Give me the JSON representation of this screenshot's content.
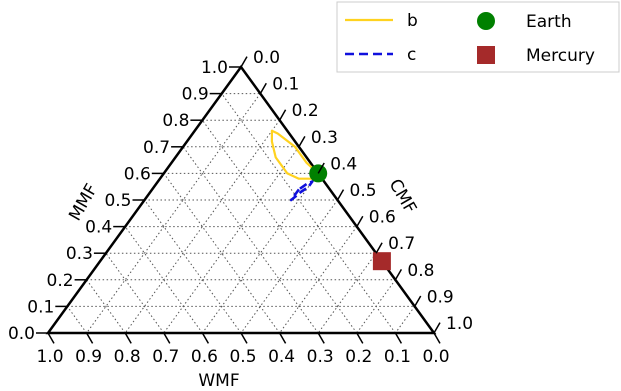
{
  "chart_data": {
    "type": "scatter",
    "subtype": "ternary",
    "title": "",
    "axes": {
      "bottom": {
        "label": "WMF",
        "ticks": [
          "1.0",
          "0.9",
          "0.8",
          "0.7",
          "0.6",
          "0.5",
          "0.4",
          "0.3",
          "0.2",
          "0.1",
          "0.0"
        ]
      },
      "left": {
        "label": "MMF",
        "ticks": [
          "0.0",
          "0.1",
          "0.2",
          "0.3",
          "0.4",
          "0.5",
          "0.6",
          "0.7",
          "0.8",
          "0.9",
          "1.0"
        ]
      },
      "right": {
        "label": "CMF",
        "ticks": [
          "0.0",
          "0.1",
          "0.2",
          "0.3",
          "0.4",
          "0.5",
          "0.6",
          "0.7",
          "0.8",
          "0.9",
          "1.0"
        ]
      }
    },
    "grid": true,
    "legend_position": "top-right",
    "series": [
      {
        "name": "b",
        "kind": "contour",
        "color": "#FFD21F",
        "line_style": "solid",
        "points": [
          {
            "CMF": 0.4,
            "MMF": 0.6,
            "WMF": 0.0
          },
          {
            "CMF": 0.35,
            "MMF": 0.64,
            "WMF": 0.01
          },
          {
            "CMF": 0.29,
            "MMF": 0.7,
            "WMF": 0.01
          },
          {
            "CMF": 0.22,
            "MMF": 0.75,
            "WMF": 0.03
          },
          {
            "CMF": 0.2,
            "MMF": 0.76,
            "WMF": 0.04
          },
          {
            "CMF": 0.22,
            "MMF": 0.72,
            "WMF": 0.06
          },
          {
            "CMF": 0.26,
            "MMF": 0.66,
            "WMF": 0.08
          },
          {
            "CMF": 0.32,
            "MMF": 0.6,
            "WMF": 0.08
          },
          {
            "CMF": 0.36,
            "MMF": 0.58,
            "WMF": 0.06
          },
          {
            "CMF": 0.4,
            "MMF": 0.58,
            "WMF": 0.02
          }
        ]
      },
      {
        "name": "c",
        "kind": "contour",
        "color": "#1010DD",
        "line_style": "dashed",
        "points": [
          {
            "CMF": 0.38,
            "MMF": 0.54,
            "WMF": 0.08
          },
          {
            "CMF": 0.38,
            "MMF": 0.51,
            "WMF": 0.11
          },
          {
            "CMF": 0.38,
            "MMF": 0.5,
            "WMF": 0.12
          },
          {
            "CMF": 0.39,
            "MMF": 0.53,
            "WMF": 0.08
          },
          {
            "CMF": 0.4,
            "MMF": 0.55,
            "WMF": 0.05
          },
          {
            "CMF": 0.4,
            "MMF": 0.57,
            "WMF": 0.03
          },
          {
            "CMF": 0.4,
            "MMF": 0.57,
            "WMF": 0.03
          },
          {
            "CMF": 0.39,
            "MMF": 0.56,
            "WMF": 0.05
          }
        ]
      },
      {
        "name": "Earth",
        "kind": "marker",
        "marker": "circle",
        "color": "#008000",
        "points": [
          {
            "CMF": 0.4,
            "MMF": 0.6,
            "WMF": 0.0
          }
        ]
      },
      {
        "name": "Mercury",
        "kind": "marker",
        "marker": "square",
        "color": "#A52A2A",
        "points": [
          {
            "CMF": 0.73,
            "MMF": 0.27,
            "WMF": 0.0
          }
        ]
      }
    ]
  }
}
